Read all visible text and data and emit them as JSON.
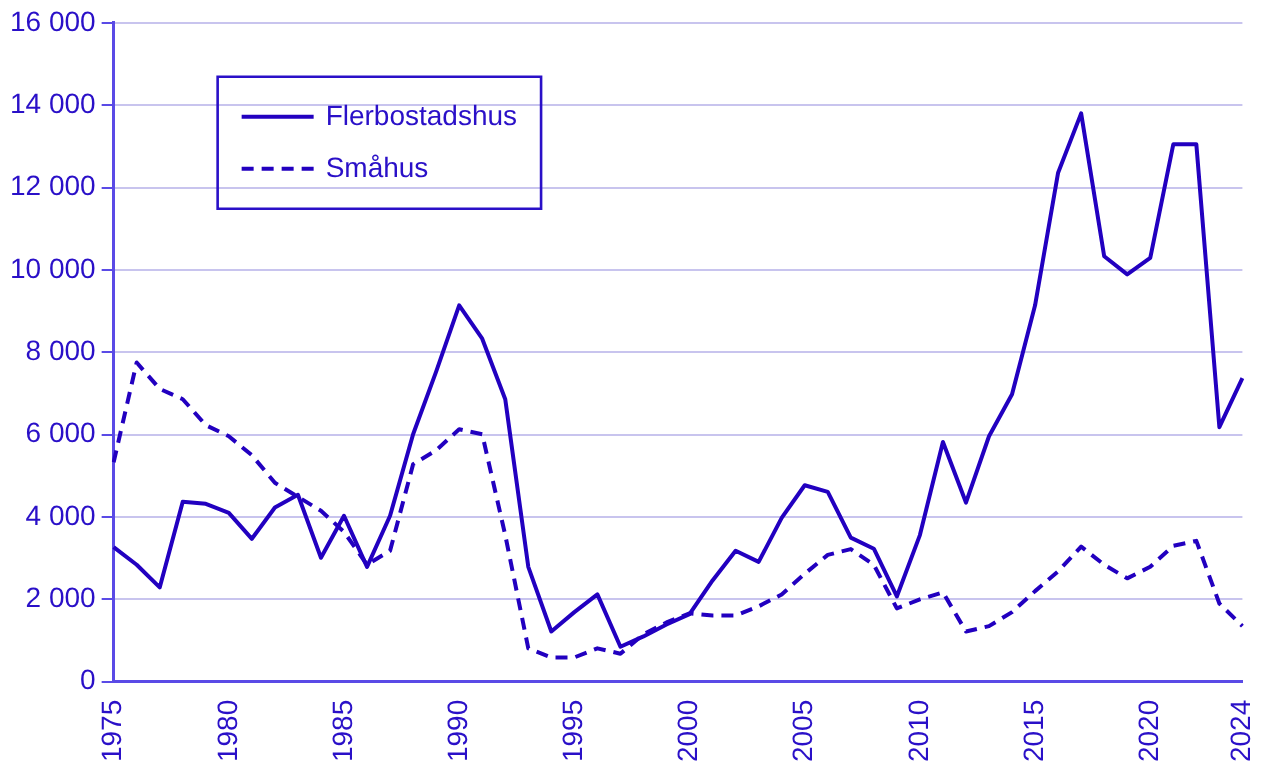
{
  "chart_data": {
    "type": "line",
    "categories": [
      "1975",
      null,
      null,
      null,
      null,
      "1980",
      null,
      null,
      null,
      null,
      "1985",
      null,
      null,
      null,
      null,
      "1990",
      null,
      null,
      null,
      null,
      "1995",
      null,
      null,
      null,
      null,
      "2000",
      null,
      null,
      null,
      null,
      "2005",
      null,
      null,
      null,
      null,
      "2010",
      null,
      null,
      null,
      null,
      "2015",
      null,
      null,
      null,
      null,
      "2020",
      null,
      null,
      null,
      "2024"
    ],
    "series": [
      {
        "name": "Flerbostadshus",
        "color": "#2200c0",
        "line_style": "solid",
        "values": [
          3270,
          2840,
          2290,
          4370,
          4320,
          4100,
          3470,
          4230,
          4540,
          3010,
          4030,
          2790,
          4030,
          6010,
          7530,
          9140,
          8330,
          6860,
          2790,
          1220,
          1690,
          2120,
          850,
          1100,
          1390,
          1640,
          2460,
          3180,
          2910,
          3980,
          4770,
          4610,
          3500,
          3230,
          2070,
          3560,
          5820,
          4350,
          5960,
          6980,
          9140,
          12360,
          13800,
          10330,
          9890,
          10290,
          13050,
          13050,
          6180,
          7370
        ]
      },
      {
        "name": "Småhus",
        "color": "#2200c0",
        "line_style": "dashed",
        "values": [
          5330,
          7750,
          7110,
          6860,
          6230,
          5960,
          5500,
          4830,
          4490,
          4150,
          3640,
          2840,
          3180,
          5280,
          5620,
          6130,
          6010,
          3560,
          810,
          590,
          590,
          810,
          680,
          1150,
          1440,
          1660,
          1610,
          1610,
          1830,
          2120,
          2620,
          3080,
          3220,
          2840,
          1780,
          2000,
          2170,
          1220,
          1350,
          1690,
          2200,
          2680,
          3280,
          2840,
          2510,
          2790,
          3300,
          3420,
          1900,
          1350
        ]
      }
    ],
    "ylim": [
      0,
      16000
    ],
    "yticks": [
      0,
      {
        "value": 2000,
        "label": "2 000"
      },
      {
        "value": 4000,
        "label": "4 000"
      },
      {
        "value": 6000,
        "label": "6 000"
      },
      {
        "value": 8000,
        "label": "8 000"
      },
      {
        "value": 10000,
        "label": "10 000"
      },
      {
        "value": 12000,
        "label": "12 000"
      },
      {
        "value": 14000,
        "label": "14 000"
      },
      {
        "value": 16000,
        "label": "16 000"
      }
    ],
    "grid": "y",
    "legend": "top left",
    "marker": "none"
  }
}
